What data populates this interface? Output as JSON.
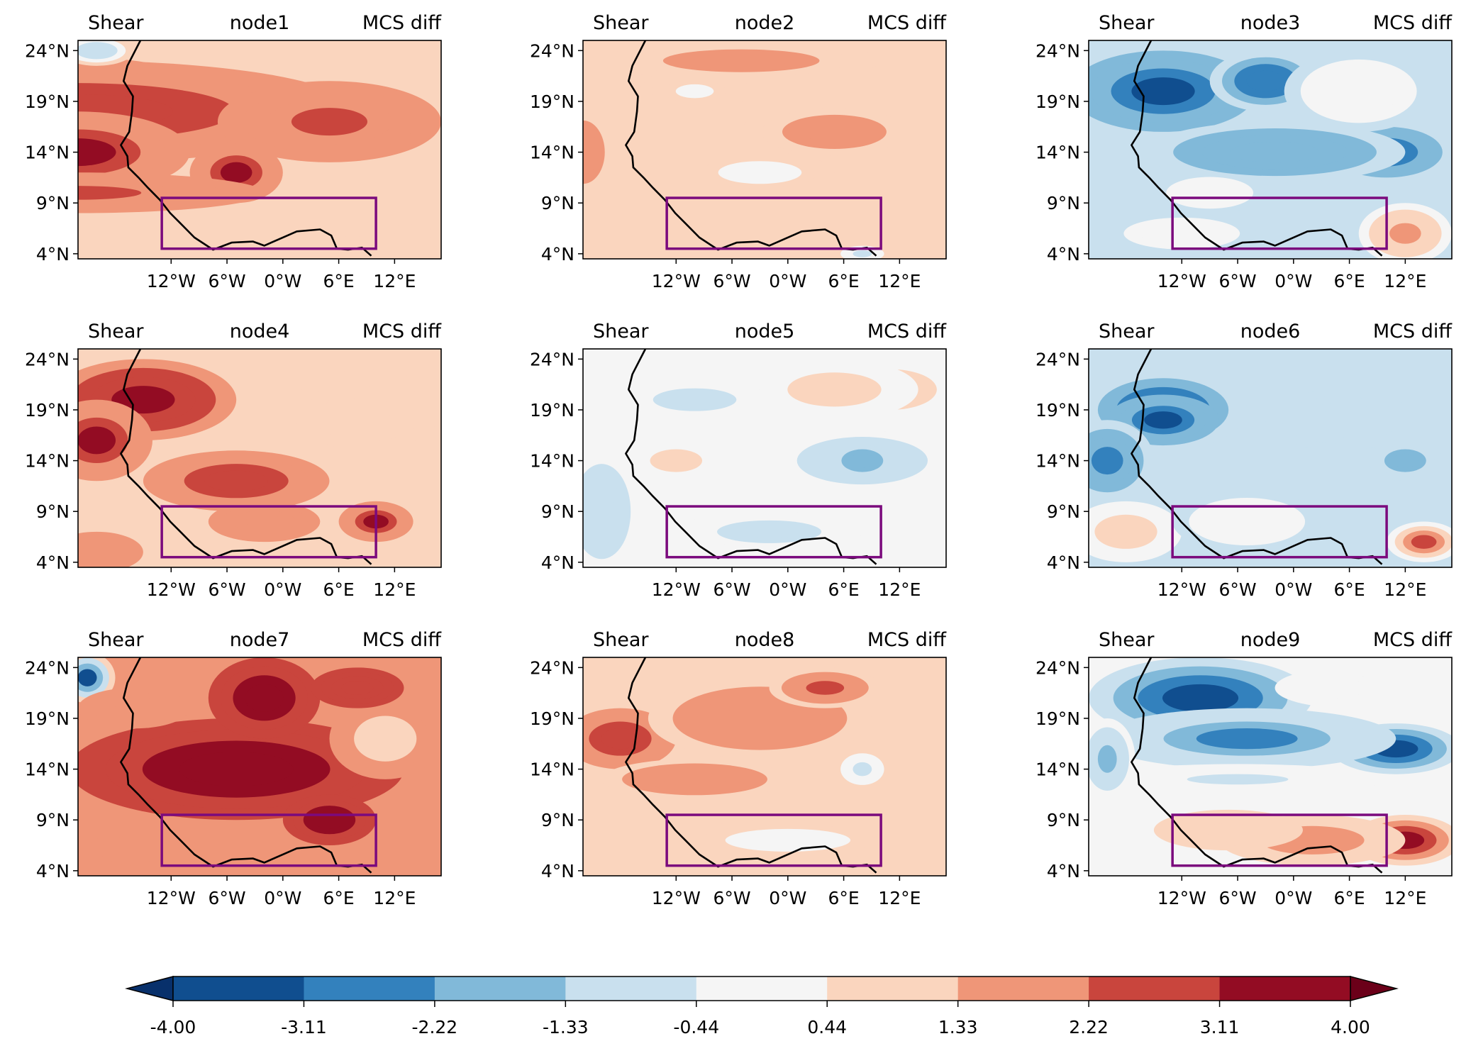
{
  "chart_data": {
    "type": "heatmap",
    "title": "",
    "panel_title_left": "Shear",
    "panel_title_right": "MCS diff",
    "xlabel": "",
    "ylabel": "",
    "lon_range": [
      -22,
      17
    ],
    "lat_range": [
      3.5,
      25
    ],
    "x_ticks": [
      -12,
      -6,
      0,
      6,
      12
    ],
    "x_tick_labels": [
      "12°W",
      "6°W",
      "0°W",
      "6°E",
      "12°E"
    ],
    "y_ticks": [
      4,
      9,
      14,
      19,
      24
    ],
    "y_tick_labels": [
      "4°N",
      "9°N",
      "14°N",
      "19°N",
      "24°N"
    ],
    "region_box": {
      "lon": [
        -13,
        10
      ],
      "lat": [
        4.5,
        9.5
      ],
      "color": "#7b0a7d"
    },
    "colorbar": {
      "levels": [
        -4.0,
        -3.11,
        -2.22,
        -1.33,
        -0.44,
        0.44,
        1.33,
        2.22,
        3.11,
        4.0
      ],
      "tick_labels": [
        "-4.00",
        "-3.11",
        "-2.22",
        "-1.33",
        "-0.44",
        "0.44",
        "1.33",
        "2.22",
        "3.11",
        "4.00"
      ],
      "colors": [
        "#08306b",
        "#104e8f",
        "#3381bd",
        "#81b9d9",
        "#c9e0ee",
        "#f5f5f5",
        "#fad5be",
        "#ef9678",
        "#c9453d",
        "#930c23",
        "#6b0019"
      ],
      "extend": "both",
      "orientation": "horizontal",
      "placement": "bottom"
    },
    "panels": [
      {
        "node": "node1",
        "background": 1.0,
        "blobs": [
          [
            -22,
            21,
            15,
            3,
            1.8
          ],
          [
            -22,
            18,
            30,
            5,
            2.7
          ],
          [
            -22,
            14,
            12,
            4,
            3.4
          ],
          [
            -5,
            12,
            5,
            3,
            3.2
          ],
          [
            5,
            17,
            12,
            4,
            2.6
          ],
          [
            -22,
            10,
            20,
            2,
            2.5
          ],
          [
            10,
            6,
            6,
            2,
            1.2
          ],
          [
            -20,
            24,
            4,
            1.5,
            -1.0
          ]
        ]
      },
      {
        "node": "node2",
        "background": 0.9,
        "blobs": [
          [
            -22,
            14,
            3,
            4,
            1.8
          ],
          [
            -5,
            23,
            15,
            2,
            1.6
          ],
          [
            5,
            16,
            10,
            3,
            1.5
          ],
          [
            -3,
            12,
            8,
            2,
            0.0
          ],
          [
            -10,
            20,
            6,
            2,
            0.3
          ],
          [
            8,
            4,
            3,
            1,
            -0.6
          ]
        ]
      },
      {
        "node": "node3",
        "background": -0.8,
        "blobs": [
          [
            -14,
            20,
            10,
            4,
            -3.4
          ],
          [
            -3,
            21,
            6,
            3,
            -2.9
          ],
          [
            10,
            14,
            6,
            2.5,
            -3.0
          ],
          [
            -2,
            14,
            14,
            3,
            -2.0
          ],
          [
            7,
            20,
            8,
            4,
            0.0
          ],
          [
            -9,
            10,
            6,
            2,
            0.4
          ],
          [
            12,
            6,
            5,
            3,
            2.0
          ],
          [
            -12,
            6,
            8,
            2,
            0.0
          ]
        ]
      },
      {
        "node": "node4",
        "background": 1.2,
        "blobs": [
          [
            -15,
            20,
            10,
            4,
            3.3
          ],
          [
            -5,
            12,
            10,
            3,
            3.0
          ],
          [
            -20,
            16,
            6,
            4,
            3.2
          ],
          [
            10,
            8,
            4,
            2,
            3.2
          ],
          [
            -2,
            8,
            6,
            2,
            2.0
          ],
          [
            9,
            19,
            8,
            4,
            0.9
          ],
          [
            -20,
            5,
            5,
            2,
            2.0
          ]
        ]
      },
      {
        "node": "node5",
        "background": 0.0,
        "blobs": [
          [
            8,
            14,
            9,
            3,
            -1.0
          ],
          [
            8,
            14,
            4,
            2,
            -2.1
          ],
          [
            11,
            21,
            5,
            2,
            1.8
          ],
          [
            5,
            21,
            9,
            3,
            0.7
          ],
          [
            -12,
            14,
            5,
            2,
            0.8
          ],
          [
            -20,
            9,
            4,
            6,
            -0.9
          ],
          [
            -2,
            7,
            10,
            2,
            -0.8
          ],
          [
            -10,
            20,
            8,
            2,
            -0.7
          ]
        ]
      },
      {
        "node": "node6",
        "background": -0.6,
        "blobs": [
          [
            -14,
            19,
            9,
            4,
            -3.1
          ],
          [
            -14,
            18,
            6,
            2.5,
            -3.6
          ],
          [
            -20,
            14,
            5,
            4,
            -2.4
          ],
          [
            12,
            14,
            4,
            2,
            -2.0
          ],
          [
            -18,
            7,
            6,
            3,
            1.2
          ],
          [
            14,
            6,
            4,
            2,
            2.5
          ],
          [
            5,
            18,
            8,
            3,
            -1.3
          ],
          [
            -5,
            8,
            8,
            3,
            0.0
          ]
        ]
      },
      {
        "node": "node7",
        "background": 2.0,
        "blobs": [
          [
            -5,
            14,
            18,
            5,
            3.6
          ],
          [
            -2,
            21,
            6,
            4,
            3.6
          ],
          [
            5,
            9,
            5,
            2.5,
            3.6
          ],
          [
            -21,
            23,
            3,
            2.5,
            -3.3
          ],
          [
            11,
            17,
            6,
            4,
            0.8
          ],
          [
            -16,
            20,
            6,
            2,
            1.5
          ],
          [
            -15,
            6,
            6,
            2,
            1.4
          ],
          [
            8,
            22,
            5,
            2,
            3.0
          ]
        ]
      },
      {
        "node": "node8",
        "background": 1.0,
        "blobs": [
          [
            -18,
            17,
            6,
            3,
            3.0
          ],
          [
            -3,
            19,
            12,
            4,
            2.0
          ],
          [
            -10,
            13,
            10,
            2,
            1.8
          ],
          [
            8,
            14,
            3,
            2,
            -0.5
          ],
          [
            0,
            7,
            12,
            2,
            0.2
          ],
          [
            4,
            22,
            6,
            2,
            2.3
          ]
        ]
      },
      {
        "node": "node9",
        "background": 0.2,
        "blobs": [
          [
            -10,
            21,
            12,
            4,
            -3.7
          ],
          [
            11,
            16,
            7,
            2.5,
            -3.5
          ],
          [
            -5,
            17,
            16,
            3,
            -2.5
          ],
          [
            6,
            22,
            8,
            2,
            0.3
          ],
          [
            -6,
            13,
            16,
            1.5,
            -0.6
          ],
          [
            12,
            7,
            6,
            2.5,
            3.6
          ],
          [
            2,
            7,
            10,
            2.5,
            2.2
          ],
          [
            -7,
            8,
            8,
            2,
            1.2
          ],
          [
            -20,
            15,
            3,
            4,
            -1.8
          ]
        ]
      }
    ]
  }
}
